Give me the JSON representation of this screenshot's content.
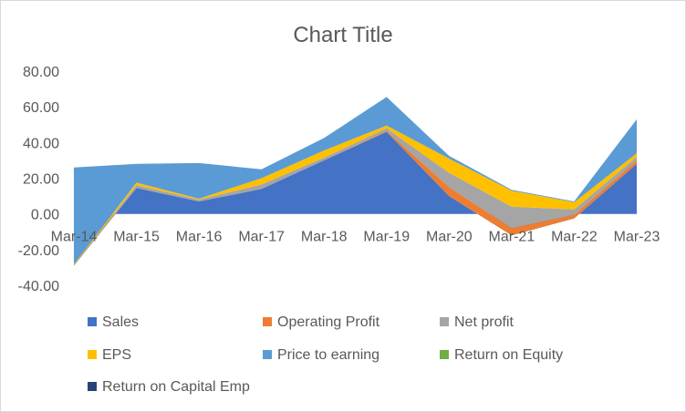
{
  "chart_data": {
    "type": "area",
    "title": "Chart Title",
    "categories": [
      "Mar-14",
      "Mar-15",
      "Mar-16",
      "Mar-17",
      "Mar-18",
      "Mar-19",
      "Mar-20",
      "Mar-21",
      "Mar-22",
      "Mar-23"
    ],
    "ylim": [
      -40,
      80
    ],
    "yticks": [
      80,
      60,
      40,
      20,
      0,
      -20,
      -40
    ],
    "ytick_labels": [
      "80.00",
      "60.00",
      "40.00",
      "20.00",
      "0.00",
      "-20.00",
      "-40.00"
    ],
    "xlabel": "",
    "ylabel": "",
    "grid": false,
    "legend_position": "bottom",
    "stacked": true,
    "series": [
      {
        "name": "Sales",
        "color": "#4472c4",
        "values": [
          -29,
          14.5,
          7,
          14,
          30,
          46,
          10,
          -12,
          -2.5,
          28
        ]
      },
      {
        "name": "Operating Profit",
        "color": "#ed7d31",
        "values": [
          0,
          0,
          0,
          0,
          0,
          0.5,
          5,
          4,
          2,
          2
        ]
      },
      {
        "name": "Net profit",
        "color": "#a5a5a5",
        "values": [
          0.5,
          1.5,
          1,
          2.5,
          1.5,
          1.5,
          8,
          12,
          3,
          2
        ]
      },
      {
        "name": "EPS",
        "color": "#ffc000",
        "values": [
          0.5,
          1.5,
          0.5,
          3.5,
          4,
          1.5,
          8,
          9,
          4,
          2
        ]
      },
      {
        "name": "Price to earning",
        "color": "#5b9bd5",
        "values": [
          54,
          10.5,
          20,
          5,
          7,
          16,
          1.5,
          0.5,
          0.5,
          19
        ]
      },
      {
        "name": "Return on Equity",
        "color": "#70ad47",
        "values": [
          0,
          0,
          0,
          0,
          0,
          0,
          0,
          0,
          0,
          0
        ]
      },
      {
        "name": "Return on Capital Emp",
        "color": "#264478",
        "values": [
          0,
          0,
          0,
          0,
          0,
          0,
          0,
          0,
          0,
          0
        ]
      }
    ]
  }
}
